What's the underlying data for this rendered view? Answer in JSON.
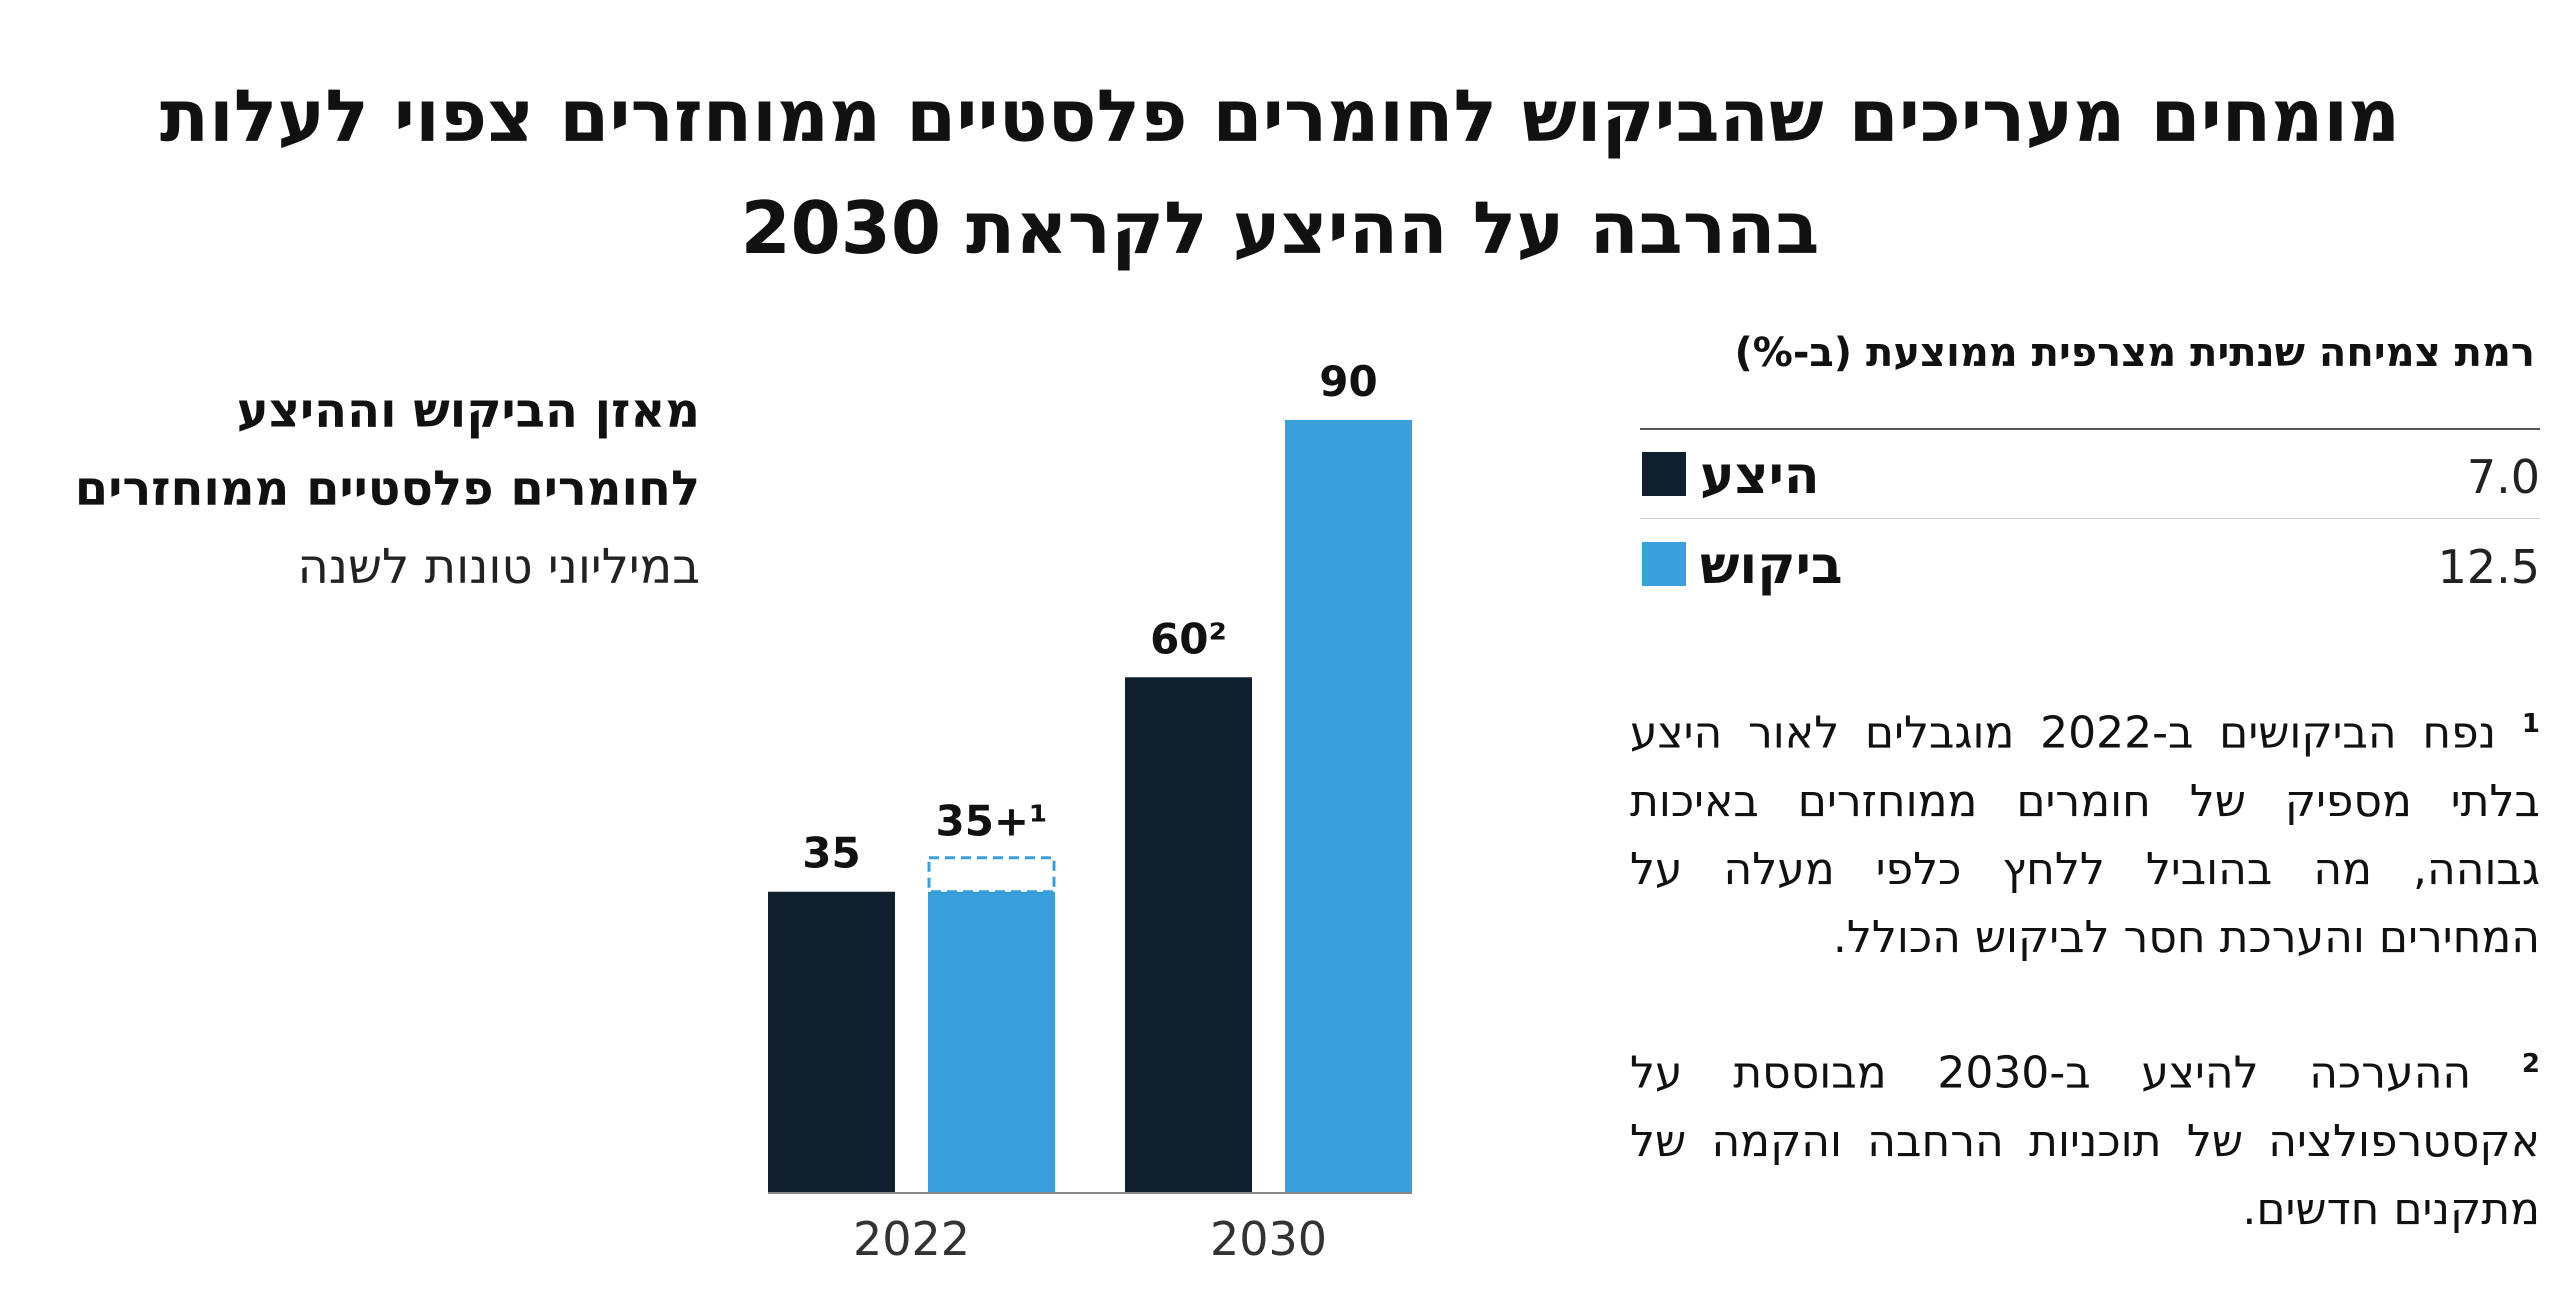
{
  "title_line1": "מומחים מעריכים שהביקוש לחומרים פלסטיים ממוחזרים צפוי לעלות",
  "title_line2": "בהרבה על ההיצע לקראת 2030",
  "subhead": {
    "line1": "מאזן הביקוש וההיצע",
    "line2": "לחומרים פלסטיים ממוחזרים",
    "unit": "במיליוני טונות לשנה"
  },
  "legend": {
    "title": "רמת צמיחה שנתית מצרפית ממוצעת (ב-%)",
    "items": [
      {
        "name": "היצע",
        "value": "7.0",
        "color": "#0f1f2e"
      },
      {
        "name": "ביקוש",
        "value": "12.5",
        "color": "#3aa0dc"
      }
    ]
  },
  "notes": [
    {
      "marker": "1",
      "text": "נפח הביקושים ב-2022 מוגבלים לאור היצע בלתי מספיק של חומרים ממוחזרים באיכות גבוהה, מה בהוביל ללחץ כלפי מעלה על המחירים והערכת חסר לביקוש הכולל."
    },
    {
      "marker": "2",
      "text": "ההערכה להיצע ב-2030 מבוססת על אקסטרפולציה של תוכניות הרחבה והקמה של מתקנים חדשים."
    }
  ],
  "chart_data": {
    "type": "bar",
    "categories": [
      "2022",
      "2030"
    ],
    "series": [
      {
        "name": "היצע",
        "values": [
          35,
          60
        ],
        "color": "#0f1f2e",
        "labels": [
          "35",
          "60²"
        ]
      },
      {
        "name": "ביקוש",
        "values": [
          35,
          90
        ],
        "color": "#3aa0dc",
        "labels": [
          "35+¹",
          "90"
        ],
        "unmet_demand_dashed": [
          true,
          false
        ]
      }
    ],
    "ylim": [
      0,
      95
    ]
  }
}
